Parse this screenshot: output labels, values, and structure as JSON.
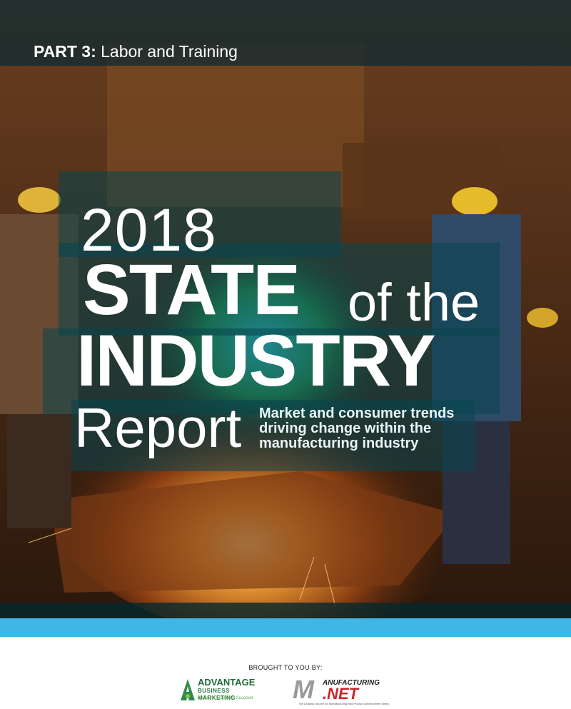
{
  "cover": {
    "part_label": "PART 3:",
    "part_title": "Labor and Training",
    "year": "2018",
    "state_word": "STATE",
    "of_the": "of the",
    "industry_word": "INDUSTRY",
    "report_word": "Report",
    "tagline": "Market and consumer trends driving change within the manufacturing industry"
  },
  "footer": {
    "brought_by": "BROUGHT TO YOU BY:",
    "sponsor1": {
      "name": "ADVANTAGE",
      "sub": "BUSINESS MARKETING",
      "tag": "Measure. Optimize. Succeed."
    },
    "sponsor2": {
      "m": "M",
      "anuf": "ANUFACTURING",
      "net": ".NET",
      "small": "The Leading Source for Manufacturing and Product Development News"
    }
  },
  "colors": {
    "accent_stripe": "#3fb6e6",
    "overlay_teal": "#08464e",
    "advantage_green": "#1f6b3a",
    "mnet_red": "#c9262b"
  }
}
